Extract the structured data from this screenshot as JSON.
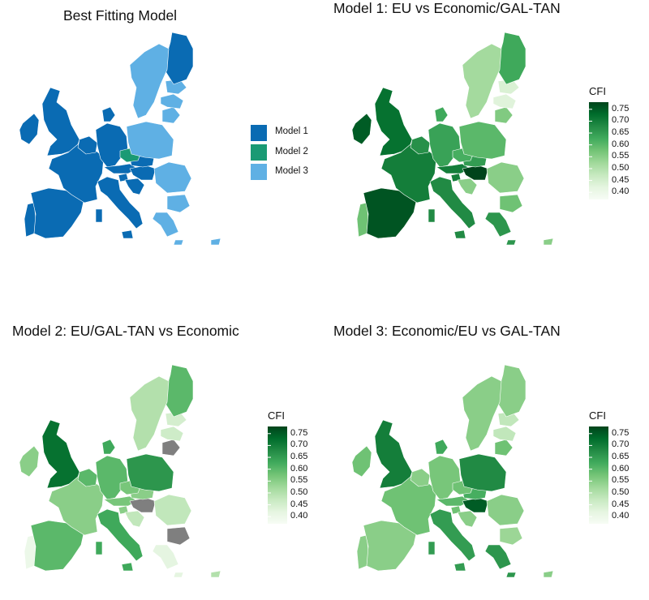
{
  "panels": [
    {
      "title": "Best Fitting Model",
      "legend_type": "categorical",
      "legend_items": [
        {
          "label": "Model 1",
          "color": "#0a6bb3"
        },
        {
          "label": "Model 2",
          "color": "#1a9a74"
        },
        {
          "label": "Model 3",
          "color": "#5fb0e4"
        }
      ],
      "regions": {
        "IE": "Model 1",
        "UK": "Model 1",
        "PT": "Model 1",
        "ES": "Model 1",
        "FR": "Model 1",
        "BENELUX": "Model 1",
        "DE": "Model 1",
        "DK": "Model 1",
        "AT": "Model 1",
        "IT": "Model 1",
        "SI": "Model 1",
        "HR": "Model 1",
        "HU": "Model 1",
        "SK": "Model 1",
        "FI": "Model 1",
        "CZ": "Model 2",
        "SE": "Model 3",
        "EE": "Model 3",
        "LV": "Model 3",
        "LT": "Model 3",
        "PL": "Model 3",
        "RO": "Model 3",
        "BG": "Model 3",
        "GR": "Model 3",
        "CY": "Model 3"
      }
    },
    {
      "title": "Model 1: EU vs Economic/GAL-TAN",
      "legend_type": "continuous",
      "legend_title": "CFI",
      "regions": {
        "IE": 0.75,
        "UK": 0.72,
        "PT": 0.58,
        "ES": 0.76,
        "FR": 0.7,
        "BENELUX": 0.67,
        "DE": 0.64,
        "DK": 0.63,
        "AT": 0.7,
        "IT": 0.68,
        "SI": 0.7,
        "HR": 0.55,
        "HU": 0.79,
        "SK": 0.65,
        "CZ": 0.62,
        "PL": 0.6,
        "LT": 0.56,
        "LV": 0.43,
        "EE": 0.44,
        "FI": 0.63,
        "SE": 0.52,
        "RO": 0.55,
        "BG": 0.58,
        "GR": 0.66,
        "CY": 0.55
      }
    },
    {
      "title": "Model 2: EU/GAL-TAN vs Economic",
      "legend_type": "continuous",
      "legend_title": "CFI",
      "regions": {
        "IE": 0.55,
        "UK": 0.72,
        "PT": 0.4,
        "ES": 0.6,
        "FR": 0.55,
        "BENELUX": 0.6,
        "DE": 0.6,
        "DK": 0.63,
        "AT": 0.57,
        "IT": 0.63,
        "SI": 0.55,
        "HR": 0.48,
        "HU": null,
        "SK": 0.55,
        "CZ": 0.57,
        "PL": 0.66,
        "LT": null,
        "LV": 0.46,
        "EE": 0.45,
        "FI": 0.6,
        "SE": 0.5,
        "RO": 0.48,
        "BG": null,
        "GR": 0.42,
        "CY": 0.5
      },
      "missing_color": "#7f7f7f"
    },
    {
      "title": "Model 3: Economic/EU vs GAL-TAN",
      "legend_type": "continuous",
      "legend_title": "CFI",
      "regions": {
        "IE": 0.58,
        "UK": 0.7,
        "PT": 0.55,
        "ES": 0.55,
        "FR": 0.58,
        "BENELUX": 0.55,
        "DE": 0.57,
        "DK": 0.63,
        "AT": 0.6,
        "IT": 0.65,
        "SI": 0.58,
        "HR": 0.55,
        "HU": 0.75,
        "SK": 0.62,
        "CZ": 0.58,
        "PL": 0.68,
        "LT": 0.58,
        "LV": 0.48,
        "EE": 0.48,
        "FI": 0.55,
        "SE": 0.55,
        "RO": 0.55,
        "BG": 0.53,
        "GR": 0.66,
        "CY": 0.55
      }
    }
  ],
  "scale": {
    "min": 0.37,
    "max": 0.78,
    "ticks": [
      "0.75",
      "0.70",
      "0.65",
      "0.60",
      "0.55",
      "0.50",
      "0.45",
      "0.40"
    ],
    "low_color": "#f7fcf5",
    "high_color": "#00441b"
  }
}
